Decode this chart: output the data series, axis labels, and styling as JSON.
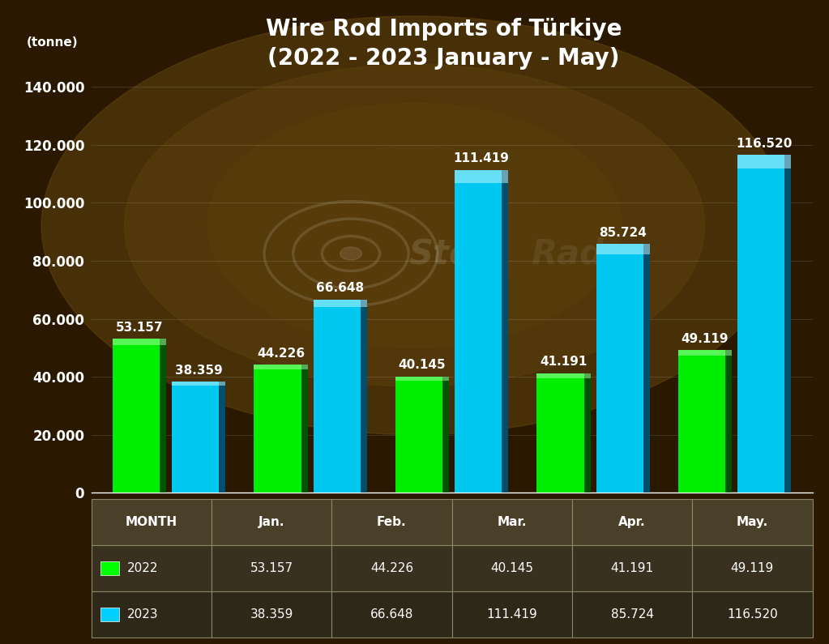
{
  "title_line1": "Wire Rod Imports of Türkiye",
  "title_line2": "(2022 - 2023 January - May)",
  "ylabel": "(tonne)",
  "months": [
    "Jan.",
    "Feb.",
    "Mar.",
    "Apr.",
    "May."
  ],
  "values_2022": [
    53157,
    44226,
    40145,
    41191,
    49119
  ],
  "values_2023": [
    38359,
    66648,
    111419,
    85724,
    116520
  ],
  "labels_2022": [
    "53.157",
    "44.226",
    "40.145",
    "41.191",
    "49.119"
  ],
  "labels_2023": [
    "38.359",
    "66.648",
    "111.419",
    "85.724",
    "116.520"
  ],
  "color_2022": "#00ff00",
  "color_2023": "#00d0ff",
  "ylim": [
    0,
    150000
  ],
  "yticks": [
    0,
    20000,
    40000,
    60000,
    80000,
    100000,
    120000,
    140000
  ],
  "ytick_labels": [
    "0",
    "20.000",
    "40.000",
    "60.000",
    "80.000",
    "100.000",
    "120.000",
    "140.000"
  ],
  "bar_width": 0.38,
  "bg_dark": "#2a1800",
  "bg_mid": "#6b4c10",
  "text_color": "#ffffff",
  "title_fontsize": 20,
  "label_fontsize": 11,
  "axis_fontsize": 12,
  "table_fontsize": 11,
  "table_row0_bg": "#4a3f28",
  "table_row1_bg": "#3a3020",
  "table_row2_bg": "#2e2818",
  "table_border": "#888866"
}
